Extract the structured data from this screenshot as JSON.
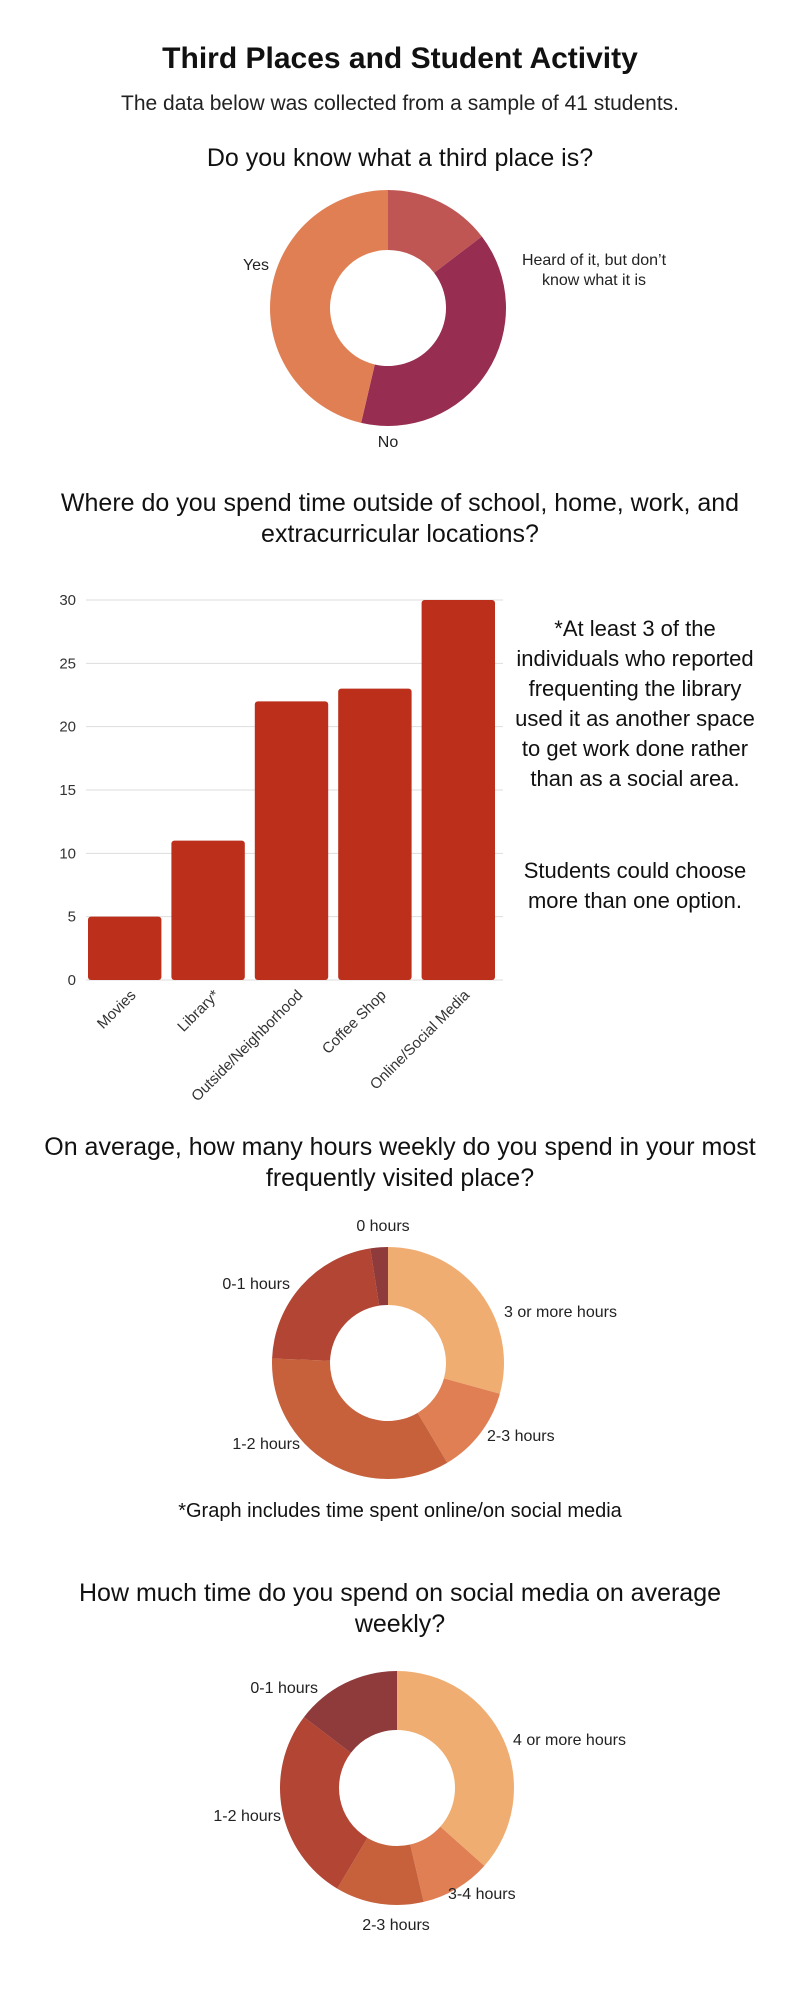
{
  "title": "Third Places and Student Activity",
  "subtitle": "The data below was collected from a sample of 41 students.",
  "chart_data": [
    {
      "type": "pie",
      "donut": true,
      "title": "Do you know what a third place is?",
      "slices": [
        {
          "label": "Heard of it, but don’t know what it is",
          "value": 6,
          "color": "#c05654"
        },
        {
          "label": "No",
          "value": 16,
          "color": "#972d51"
        },
        {
          "label": "Yes",
          "value": 19,
          "color": "#e07f54"
        }
      ]
    },
    {
      "type": "bar",
      "title": "Where do you spend time outside of school, home, work, and extracurricular locations?",
      "categories": [
        "Movies",
        "Library*",
        "Outside/Neighborhood",
        "Coffee Shop",
        "Online/Social Media"
      ],
      "values": [
        5,
        11,
        22,
        23,
        30
      ],
      "ylim": [
        0,
        30
      ],
      "yticks": [
        "0",
        "5",
        "10",
        "15",
        "20",
        "25",
        "30"
      ],
      "grid": true,
      "color": "#bb2f1b",
      "annotation": "*At least 3 of the individuals who reported frequenting the library used it as another space to get work done rather than as a social area.",
      "annotation2": "Students could choose more than one option."
    },
    {
      "type": "pie",
      "donut": true,
      "title": "On average, how many hours weekly do you spend in your most frequently visited place?",
      "footnote": "*Graph includes time spent online/on social media",
      "slices": [
        {
          "label": "3 or more hours",
          "value": 12,
          "color": "#f0ad72"
        },
        {
          "label": "2-3 hours",
          "value": 5,
          "color": "#e07f54"
        },
        {
          "label": "1-2 hours",
          "value": 14,
          "color": "#c6613c"
        },
        {
          "label": "0-1 hours",
          "value": 9,
          "color": "#b24533"
        },
        {
          "label": "0 hours",
          "value": 1,
          "color": "#8f3a3b"
        }
      ]
    },
    {
      "type": "pie",
      "donut": true,
      "title": "How much time do you spend on social media on average weekly?",
      "slices": [
        {
          "label": "4 or more hours",
          "value": 15,
          "color": "#f0ad72"
        },
        {
          "label": "3-4 hours",
          "value": 4,
          "color": "#e07f54"
        },
        {
          "label": "2-3 hours",
          "value": 5,
          "color": "#c6613c"
        },
        {
          "label": "1-2 hours",
          "value": 11,
          "color": "#b24533"
        },
        {
          "label": "0-1 hours",
          "value": 6,
          "color": "#8f3a3b"
        }
      ]
    }
  ]
}
